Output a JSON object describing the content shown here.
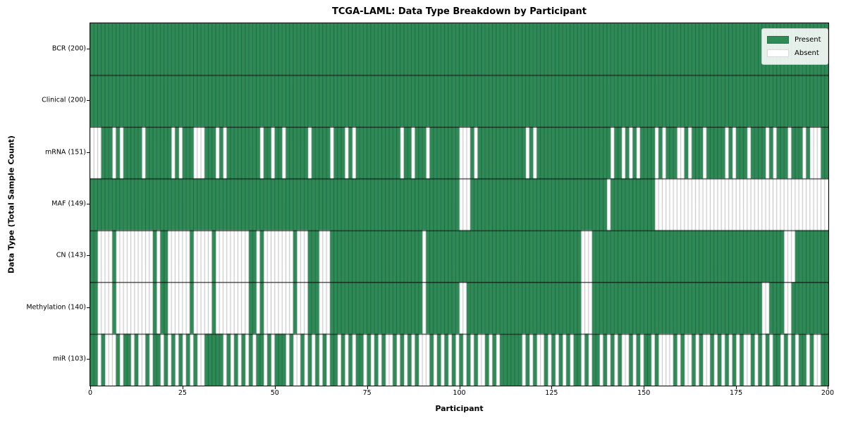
{
  "colors": {
    "present": "#2e8b57",
    "absent": "#ffffff",
    "cell_edge": "rgba(0,0,0,0.38)",
    "row_separator": "#000000",
    "axis": "#000000"
  },
  "chart_data": {
    "type": "heatmap",
    "title": "TCGA-LAML: Data Type Breakdown by Participant",
    "xlabel": "Participant",
    "ylabel": "Data Type (Total Sample Count)",
    "legend_labels": [
      "Present",
      "Absent"
    ],
    "legend_position": "upper right",
    "n_participants": 200,
    "x_range": [
      0,
      200
    ],
    "x_ticks": [
      0,
      25,
      50,
      75,
      100,
      125,
      150,
      175,
      200
    ],
    "grid": "row separators only",
    "rows": [
      {
        "label": "BCR (200)",
        "data_type": "BCR",
        "present_count": 200,
        "absent_indices": []
      },
      {
        "label": "Clinical (200)",
        "data_type": "Clinical",
        "present_count": 200,
        "absent_indices": []
      },
      {
        "label": "mRNA (151)",
        "data_type": "mRNA",
        "present_count": 151,
        "absent_indices": [
          0,
          1,
          2,
          6,
          8,
          14,
          22,
          24,
          28,
          29,
          30,
          34,
          36,
          46,
          49,
          52,
          59,
          65,
          69,
          71,
          84,
          87,
          91,
          100,
          101,
          102,
          104,
          118,
          120,
          141,
          144,
          146,
          148,
          153,
          155,
          159,
          160,
          162,
          166,
          172,
          174,
          178,
          183,
          185,
          189,
          193,
          195,
          196,
          197
        ]
      },
      {
        "label": "MAF (149)",
        "data_type": "MAF",
        "present_count": 149,
        "absent_indices": [
          100,
          101,
          102,
          140,
          153,
          154,
          155,
          156,
          157,
          158,
          159,
          160,
          161,
          162,
          163,
          164,
          165,
          166,
          167,
          168,
          169,
          170,
          171,
          172,
          173,
          174,
          175,
          176,
          177,
          178,
          179,
          180,
          181,
          182,
          183,
          184,
          185,
          186,
          187,
          188,
          189,
          190,
          191,
          192,
          193,
          194,
          195,
          196,
          197,
          198,
          199
        ]
      },
      {
        "label": "CN (143)",
        "data_type": "CN",
        "present_count": 143,
        "absent_indices": [
          2,
          3,
          4,
          5,
          7,
          8,
          9,
          10,
          11,
          12,
          13,
          14,
          15,
          16,
          18,
          21,
          22,
          23,
          24,
          25,
          26,
          28,
          29,
          30,
          31,
          32,
          34,
          35,
          36,
          37,
          38,
          39,
          40,
          41,
          42,
          45,
          47,
          48,
          49,
          50,
          51,
          52,
          53,
          54,
          56,
          57,
          58,
          62,
          63,
          64,
          90,
          133,
          134,
          135,
          188,
          189,
          190
        ]
      },
      {
        "label": "Methylation (140)",
        "data_type": "Methylation",
        "present_count": 140,
        "absent_indices": [
          2,
          3,
          4,
          5,
          7,
          8,
          9,
          10,
          11,
          12,
          13,
          14,
          15,
          16,
          18,
          21,
          22,
          23,
          24,
          25,
          26,
          28,
          29,
          30,
          31,
          32,
          34,
          35,
          36,
          37,
          38,
          39,
          40,
          41,
          42,
          45,
          47,
          48,
          49,
          50,
          51,
          52,
          53,
          54,
          56,
          57,
          58,
          62,
          63,
          64,
          90,
          100,
          101,
          133,
          134,
          135,
          182,
          183,
          188,
          189
        ]
      },
      {
        "label": "miR (103)",
        "data_type": "miR",
        "present_count": 103,
        "absent_indices": [
          2,
          4,
          5,
          6,
          8,
          11,
          13,
          14,
          16,
          19,
          21,
          23,
          25,
          27,
          29,
          30,
          36,
          38,
          40,
          42,
          44,
          47,
          49,
          53,
          55,
          56,
          58,
          60,
          62,
          64,
          67,
          69,
          71,
          74,
          76,
          78,
          80,
          81,
          83,
          85,
          87,
          89,
          90,
          91,
          93,
          95,
          97,
          99,
          101,
          103,
          105,
          106,
          108,
          110,
          117,
          119,
          121,
          122,
          124,
          126,
          128,
          130,
          133,
          135,
          138,
          140,
          142,
          144,
          145,
          147,
          149,
          152,
          154,
          155,
          156,
          157,
          159,
          161,
          162,
          164,
          166,
          167,
          169,
          171,
          173,
          175,
          177,
          178,
          180,
          182,
          184,
          187,
          189,
          191,
          194,
          196,
          197
        ]
      }
    ]
  }
}
